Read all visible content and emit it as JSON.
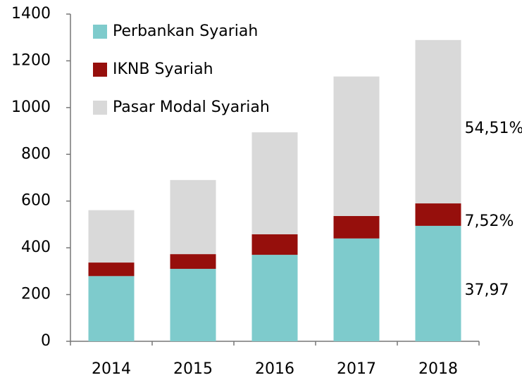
{
  "chart_data": {
    "type": "stacked_bar",
    "categories": [
      "2014",
      "2015",
      "2016",
      "2017",
      "2018"
    ],
    "series": [
      {
        "name": "Perbankan Syariah",
        "color": "#7ecbcc",
        "values": [
          279,
          310,
          370,
          440,
          494
        ]
      },
      {
        "name": "IKNB Syariah",
        "color": "#960f0c",
        "values": [
          58,
          63,
          88,
          96,
          96
        ]
      },
      {
        "name": "Pasar Modal Syariah",
        "color": "#d9d9d9",
        "values": [
          224,
          317,
          436,
          597,
          699
        ]
      }
    ],
    "annotations": [
      "37,97",
      "7,52%",
      "54,51%"
    ],
    "ylim": [
      0,
      1400
    ],
    "yticks": [
      0,
      200,
      400,
      600,
      800,
      1000,
      1200,
      1400
    ],
    "legend": "upper left",
    "grid": false
  }
}
